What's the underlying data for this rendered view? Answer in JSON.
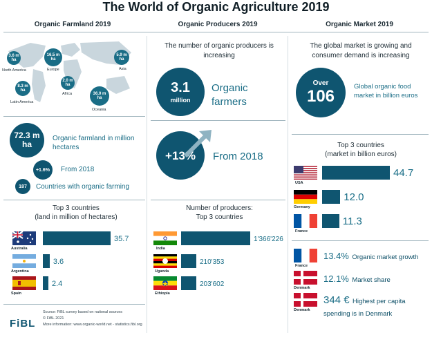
{
  "title": "The World of Organic Agriculture 2019",
  "farmland": {
    "heading": "Organic Farmland 2019",
    "map": [
      {
        "value": "3.6 m\nha",
        "region": "North America"
      },
      {
        "value": "16.5 m\nha",
        "region": "Europe"
      },
      {
        "value": "5.9 m\nha",
        "region": "Asia"
      },
      {
        "value": "8.3 m\nha",
        "region": "Latin America"
      },
      {
        "value": "2.0 m\nha",
        "region": "Africa"
      },
      {
        "value": "36.0 m\nha",
        "region": "Oceania"
      }
    ],
    "total_value": "72.3 m\nha",
    "total_label": "Organic farmland in million hectares",
    "growth_value": "+1.6%",
    "growth_label": "From 2018",
    "countries_value": "187",
    "countries_label": "Countries with organic farming",
    "top_heading": "Top 3 countries\n(land in million of hectares)",
    "top": [
      {
        "country": "Australia",
        "value": 35.7,
        "label": "35.7"
      },
      {
        "country": "Argentina",
        "value": 3.6,
        "label": "3.6"
      },
      {
        "country": "Spain",
        "value": 2.4,
        "label": "2.4"
      }
    ]
  },
  "producers": {
    "heading": "Organic Producers 2019",
    "subtitle": "The number of organic producers is increasing",
    "count_value": "3.1",
    "count_unit": "million",
    "count_label": "Organic farmers",
    "growth_value": "+13%",
    "growth_label": "From 2018",
    "top_heading": "Number of producers:\nTop 3 countries",
    "top": [
      {
        "country": "India",
        "value": 1366226,
        "label": "1'366'226"
      },
      {
        "country": "Uganda",
        "value": 210353,
        "label": "210'353"
      },
      {
        "country": "Ethiopia",
        "value": 203602,
        "label": "203'602"
      }
    ]
  },
  "market": {
    "heading": "Organic Market 2019",
    "subtitle": "The global market is growing and consumer demand is increasing",
    "size_over": "Over",
    "size_value": "106",
    "size_label": "Global organic food market in billion euros",
    "top_heading": "Top 3 countries\n(market in billion euros)",
    "top": [
      {
        "country": "USA",
        "value": 44.7,
        "label": "44.7"
      },
      {
        "country": "Germany",
        "value": 12.0,
        "label": "12.0"
      },
      {
        "country": "France",
        "value": 11.3,
        "label": "11.3"
      }
    ],
    "facts": [
      {
        "country": "France",
        "value": "13.4%",
        "label": "Organic market growth"
      },
      {
        "country": "Denmark",
        "value": "12.1%",
        "label": "Market share"
      },
      {
        "country": "Denmark",
        "value": "344 €",
        "label": "Highest per capita spending is in Denmark"
      }
    ]
  },
  "footer": {
    "logo": "FiBL",
    "source": "Source: FiBL survey based on national sources",
    "copyright": "© FiBL 2021",
    "more": "More information: www.organic-world.net - statistics.fibl.org"
  },
  "colors": {
    "primary": "#0f5570",
    "accent": "#1a6d86"
  }
}
